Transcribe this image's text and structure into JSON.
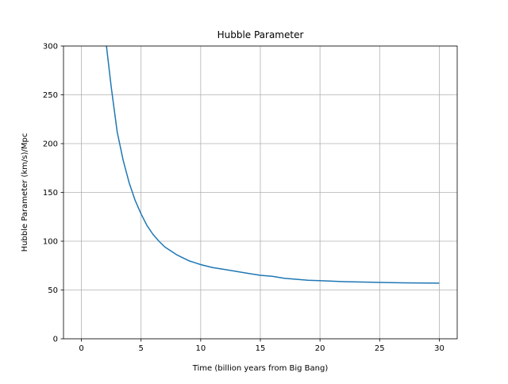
{
  "chart_data": {
    "type": "line",
    "title": "Hubble Parameter",
    "xlabel": "Time (billion years from Big Bang)",
    "ylabel": "Hubble Parameter (km/s)/Mpc",
    "xlim": [
      -1.5,
      31.5
    ],
    "ylim": [
      0,
      300
    ],
    "xticks": [
      0,
      5,
      10,
      15,
      20,
      25,
      30
    ],
    "yticks": [
      0,
      50,
      100,
      150,
      200,
      250,
      300
    ],
    "grid": true,
    "legend": "none",
    "series": [
      {
        "color": "#1f77b4",
        "x": [
          2.1,
          2.5,
          3.0,
          3.5,
          4.0,
          4.5,
          5.0,
          5.5,
          6.0,
          6.5,
          7.0,
          7.5,
          8.0,
          8.5,
          9.0,
          9.5,
          10.0,
          11.0,
          12.0,
          13.0,
          14.0,
          15.0,
          16.0,
          17.0,
          18.0,
          19.0,
          20.0,
          22.0,
          24.0,
          26.0,
          28.0,
          30.0
        ],
        "y": [
          300,
          258,
          212,
          183,
          160,
          142,
          128,
          116,
          107,
          100,
          94,
          90,
          86,
          83,
          80,
          78,
          76,
          73,
          71,
          69,
          67,
          65,
          64,
          62,
          61,
          60,
          59.5,
          58.5,
          58,
          57.5,
          57.2,
          57
        ]
      }
    ]
  }
}
